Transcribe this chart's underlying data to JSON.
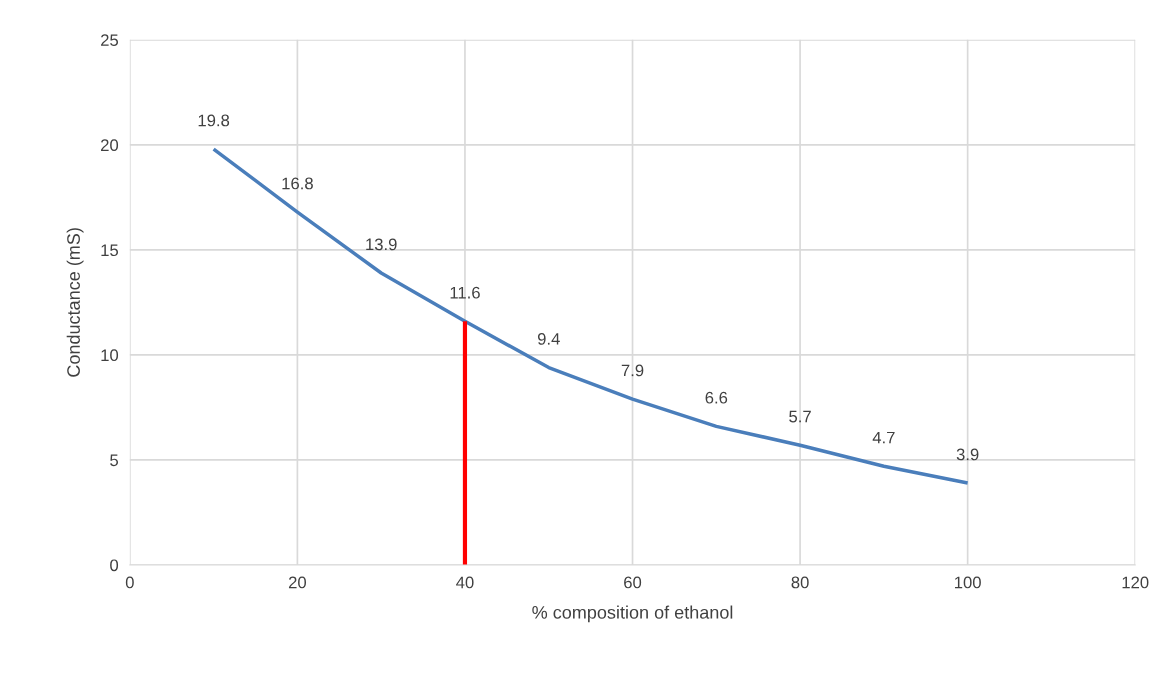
{
  "chart_data": {
    "type": "line",
    "xlabel": "% composition of ethanol",
    "ylabel": "Conductance (mS)",
    "x": [
      10,
      20,
      30,
      40,
      50,
      60,
      70,
      80,
      90,
      100
    ],
    "series": [
      {
        "color": "#4a7ebb",
        "values": [
          19.8,
          16.8,
          13.9,
          11.6,
          9.4,
          7.9,
          6.6,
          5.7,
          4.7,
          3.9
        ],
        "value_labels": [
          "19.8",
          "16.8",
          "13.9",
          "11.6",
          "9.4",
          "7.9",
          "6.6",
          "5.7",
          "4.7",
          "3.9"
        ]
      },
      {
        "type": "line",
        "color": "#ff0000",
        "x": [
          40,
          40
        ],
        "values": [
          0,
          11.6
        ]
      }
    ],
    "xlim": [
      0,
      120
    ],
    "xticks": [
      0,
      20,
      40,
      60,
      80,
      100,
      120
    ],
    "ylim": [
      0,
      25
    ],
    "yticks": [
      0,
      5,
      10,
      15,
      20,
      25
    ],
    "grid": true,
    "line_style": "solid",
    "marker": "none"
  }
}
